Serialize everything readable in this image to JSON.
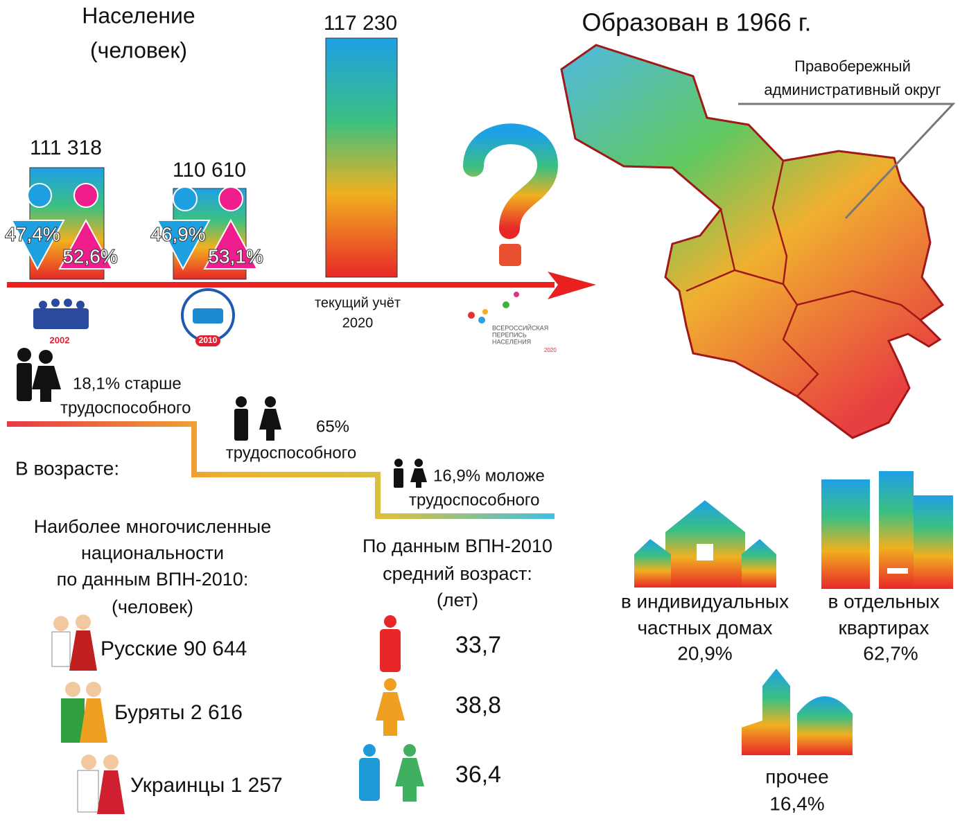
{
  "population": {
    "title": [
      "Население",
      "(человек)"
    ],
    "census": [
      {
        "value": "111 318",
        "male": "47,4%",
        "female": "52,6%",
        "logo": "2002"
      },
      {
        "value": "110 610",
        "male": "46,9%",
        "female": "53,1%",
        "logo": "2010"
      },
      {
        "value": "117 230",
        "label": [
          "текущий учёт",
          "2020"
        ]
      }
    ],
    "census_2020_logo": [
      "ВСЕРОССИЙСКАЯ",
      "ПЕРЕПИСЬ",
      "НАСЕЛЕНИЯ",
      "2020"
    ]
  },
  "map": {
    "title": "Образован в 1966 г.",
    "district": [
      "Правобережный",
      "административный округ"
    ]
  },
  "age": {
    "label": "В возрасте:",
    "groups": [
      [
        "18,1% старше",
        "трудоспособного"
      ],
      [
        "65%",
        "трудоспособного"
      ],
      [
        "16,9% моложе",
        "трудоспособного"
      ]
    ]
  },
  "nationalities": {
    "title": [
      "Наиболее многочисленные",
      "национальности",
      "по данным ВПН-2010:",
      "(человек)"
    ],
    "items": [
      "Русские 90 644",
      "Буряты 2 616",
      "Украинцы 1 257"
    ]
  },
  "median_age": {
    "title": [
      "По данным ВПН-2010",
      "средний возраст:",
      "(лет)"
    ],
    "values": [
      "33,7",
      "38,8",
      "36,4"
    ]
  },
  "housing": [
    {
      "label": [
        "в индивидуальных",
        "частных домах"
      ],
      "value": "20,9%"
    },
    {
      "label": [
        "в отдельных",
        "квартирах"
      ],
      "value": "62,7%"
    },
    {
      "label": [
        "прочее"
      ],
      "value": "16,4%"
    }
  ]
}
